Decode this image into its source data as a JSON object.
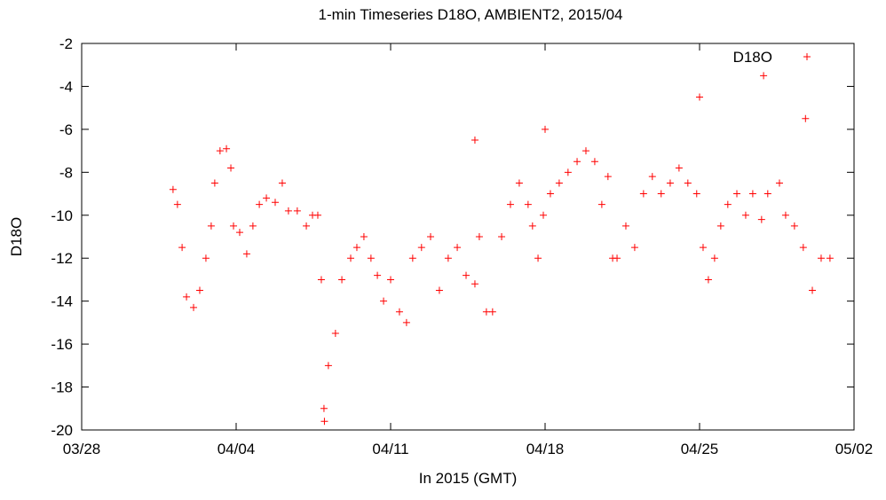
{
  "chart_data": {
    "type": "scatter",
    "title": "1-min Timeseries D18O, AMBIENT2, 2015/04",
    "x_label": "In 2015 (GMT)",
    "y_label": "D18O",
    "xlim": [
      0,
      35
    ],
    "xticks": [
      {
        "value": 0,
        "label": "03/28"
      },
      {
        "value": 7,
        "label": "04/04"
      },
      {
        "value": 14,
        "label": "04/11"
      },
      {
        "value": 21,
        "label": "04/18"
      },
      {
        "value": 28,
        "label": "04/25"
      },
      {
        "value": 35,
        "label": "05/02"
      }
    ],
    "ylim": [
      -20,
      -2
    ],
    "yticks": [
      -2,
      -4,
      -6,
      -8,
      -10,
      -12,
      -14,
      -16,
      -18,
      -20
    ],
    "legend": "top-right",
    "series": [
      {
        "name": "D18O",
        "color": "#ff0000",
        "x": [
          4.14,
          4.34,
          4.55,
          4.75,
          5.07,
          5.35,
          5.63,
          5.87,
          6.03,
          6.27,
          6.56,
          6.76,
          6.88,
          7.16,
          7.48,
          7.76,
          8.05,
          8.37,
          8.77,
          9.09,
          9.37,
          9.77,
          10.18,
          10.46,
          10.7,
          10.86,
          10.98,
          11.18,
          11.5,
          11.79,
          12.19,
          12.47,
          12.79,
          13.11,
          13.4,
          13.68,
          14.0,
          14.4,
          14.72,
          15.0,
          15.4,
          15.81,
          16.21,
          16.61,
          17.02,
          17.42,
          17.82,
          18.02,
          18.34,
          18.62,
          19.03,
          19.43,
          19.83,
          20.23,
          20.43,
          20.68,
          20.92,
          21.24,
          21.64,
          22.04,
          22.45,
          22.85,
          23.25,
          23.57,
          23.85,
          24.06,
          24.26,
          24.66,
          25.06,
          25.46,
          25.86,
          26.26,
          26.67,
          27.07,
          27.47,
          27.87,
          28.16,
          28.4,
          28.68,
          28.96,
          29.28,
          29.69,
          30.09,
          30.41,
          30.81,
          31.09,
          31.62,
          31.9,
          32.3,
          32.7,
          33.11,
          33.51,
          33.91,
          17.82,
          21.0,
          28.0,
          30.9,
          32.8,
          11.0
        ],
        "values": [
          -8.8,
          -9.5,
          -11.5,
          -13.8,
          -14.3,
          -13.5,
          -12,
          -10.5,
          -8.5,
          -7,
          -6.9,
          -7.8,
          -10.5,
          -10.8,
          -11.8,
          -10.5,
          -9.5,
          -9.2,
          -9.4,
          -8.5,
          -9.8,
          -9.8,
          -10.5,
          -10,
          -10,
          -13,
          -19,
          -17,
          -15.5,
          -13,
          -12,
          -11.5,
          -11,
          -12,
          -12.8,
          -14,
          -13,
          -14.5,
          -15,
          -12,
          -11.5,
          -11,
          -13.5,
          -12,
          -11.5,
          -12.8,
          -13.2,
          -11,
          -14.5,
          -14.5,
          -11,
          -9.5,
          -8.5,
          -9.5,
          -10.5,
          -12,
          -10,
          -9,
          -8.5,
          -8,
          -7.5,
          -7,
          -7.5,
          -9.5,
          -8.2,
          -12,
          -12,
          -10.5,
          -11.5,
          -9,
          -8.2,
          -9,
          -8.5,
          -7.8,
          -8.5,
          -9,
          -11.5,
          -13,
          -12,
          -10.5,
          -9.5,
          -9,
          -10,
          -9,
          -10.2,
          -9,
          -8.5,
          -10,
          -10.5,
          -11.5,
          -13.5,
          -12,
          -12,
          -6.5,
          -6,
          -4.5,
          -3.5,
          -5.5,
          -19.6
        ]
      }
    ]
  }
}
